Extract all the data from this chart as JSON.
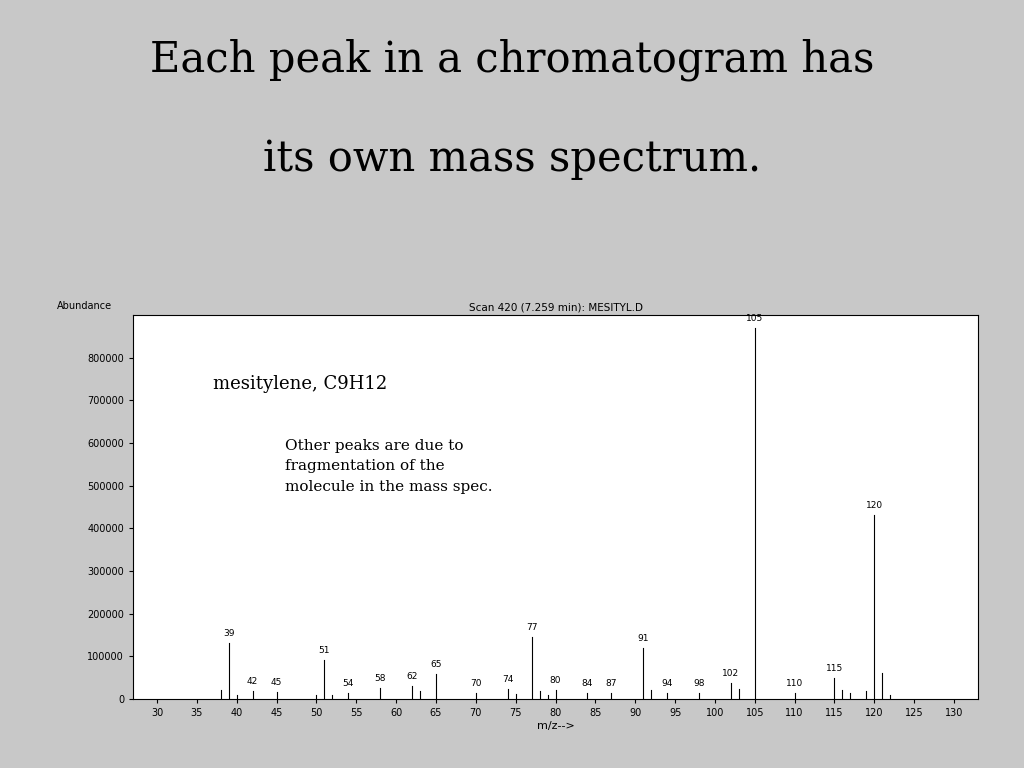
{
  "title_line1": "Each peak in a chromatogram has",
  "title_line2": "its own mass spectrum.",
  "title_fontsize": 30,
  "background_color": "#c8c8c8",
  "chart_bg": "#ffffff",
  "chart_title": "Scan 420 (7.259 min): MESITYL.D",
  "chart_title_fontsize": 7.5,
  "ylabel": "Abundance",
  "xlabel": "m/z-->",
  "xlim": [
    27,
    133
  ],
  "ylim": [
    0,
    900000
  ],
  "yticks": [
    0,
    100000,
    200000,
    300000,
    400000,
    500000,
    600000,
    700000,
    800000
  ],
  "xticks": [
    30,
    35,
    40,
    45,
    50,
    55,
    60,
    65,
    70,
    75,
    80,
    85,
    90,
    95,
    100,
    105,
    110,
    115,
    120,
    125,
    130
  ],
  "annotation1": "mesitylene, C9H12",
  "annotation1_fontsize": 13,
  "annotation2": "Other peaks are due to\nfragmentation of the\nmolecule in the mass spec.",
  "annotation2_fontsize": 11,
  "peaks": [
    {
      "mz": 38,
      "intensity": 20000,
      "label": null
    },
    {
      "mz": 39,
      "intensity": 130000,
      "label": "39"
    },
    {
      "mz": 40,
      "intensity": 8000,
      "label": null
    },
    {
      "mz": 42,
      "intensity": 18000,
      "label": "42"
    },
    {
      "mz": 45,
      "intensity": 15000,
      "label": "45"
    },
    {
      "mz": 50,
      "intensity": 8000,
      "label": null
    },
    {
      "mz": 51,
      "intensity": 90000,
      "label": "51"
    },
    {
      "mz": 52,
      "intensity": 10000,
      "label": null
    },
    {
      "mz": 54,
      "intensity": 14000,
      "label": "54"
    },
    {
      "mz": 58,
      "intensity": 25000,
      "label": "58"
    },
    {
      "mz": 62,
      "intensity": 30000,
      "label": "62"
    },
    {
      "mz": 63,
      "intensity": 18000,
      "label": null
    },
    {
      "mz": 65,
      "intensity": 58000,
      "label": "65"
    },
    {
      "mz": 70,
      "intensity": 14000,
      "label": "70"
    },
    {
      "mz": 74,
      "intensity": 22000,
      "label": "74"
    },
    {
      "mz": 75,
      "intensity": 12000,
      "label": null
    },
    {
      "mz": 77,
      "intensity": 145000,
      "label": "77"
    },
    {
      "mz": 78,
      "intensity": 18000,
      "label": null
    },
    {
      "mz": 79,
      "intensity": 8000,
      "label": null
    },
    {
      "mz": 80,
      "intensity": 20000,
      "label": "80"
    },
    {
      "mz": 84,
      "intensity": 14000,
      "label": "84"
    },
    {
      "mz": 87,
      "intensity": 14000,
      "label": "87"
    },
    {
      "mz": 91,
      "intensity": 120000,
      "label": "91"
    },
    {
      "mz": 92,
      "intensity": 20000,
      "label": null
    },
    {
      "mz": 94,
      "intensity": 14000,
      "label": "94"
    },
    {
      "mz": 98,
      "intensity": 14000,
      "label": "98"
    },
    {
      "mz": 102,
      "intensity": 38000,
      "label": "102"
    },
    {
      "mz": 103,
      "intensity": 22000,
      "label": null
    },
    {
      "mz": 105,
      "intensity": 870000,
      "label": "105"
    },
    {
      "mz": 110,
      "intensity": 14000,
      "label": "110"
    },
    {
      "mz": 115,
      "intensity": 48000,
      "label": "115"
    },
    {
      "mz": 116,
      "intensity": 20000,
      "label": null
    },
    {
      "mz": 117,
      "intensity": 14000,
      "label": null
    },
    {
      "mz": 119,
      "intensity": 18000,
      "label": null
    },
    {
      "mz": 120,
      "intensity": 430000,
      "label": "120"
    },
    {
      "mz": 121,
      "intensity": 60000,
      "label": null
    },
    {
      "mz": 122,
      "intensity": 10000,
      "label": null
    }
  ]
}
